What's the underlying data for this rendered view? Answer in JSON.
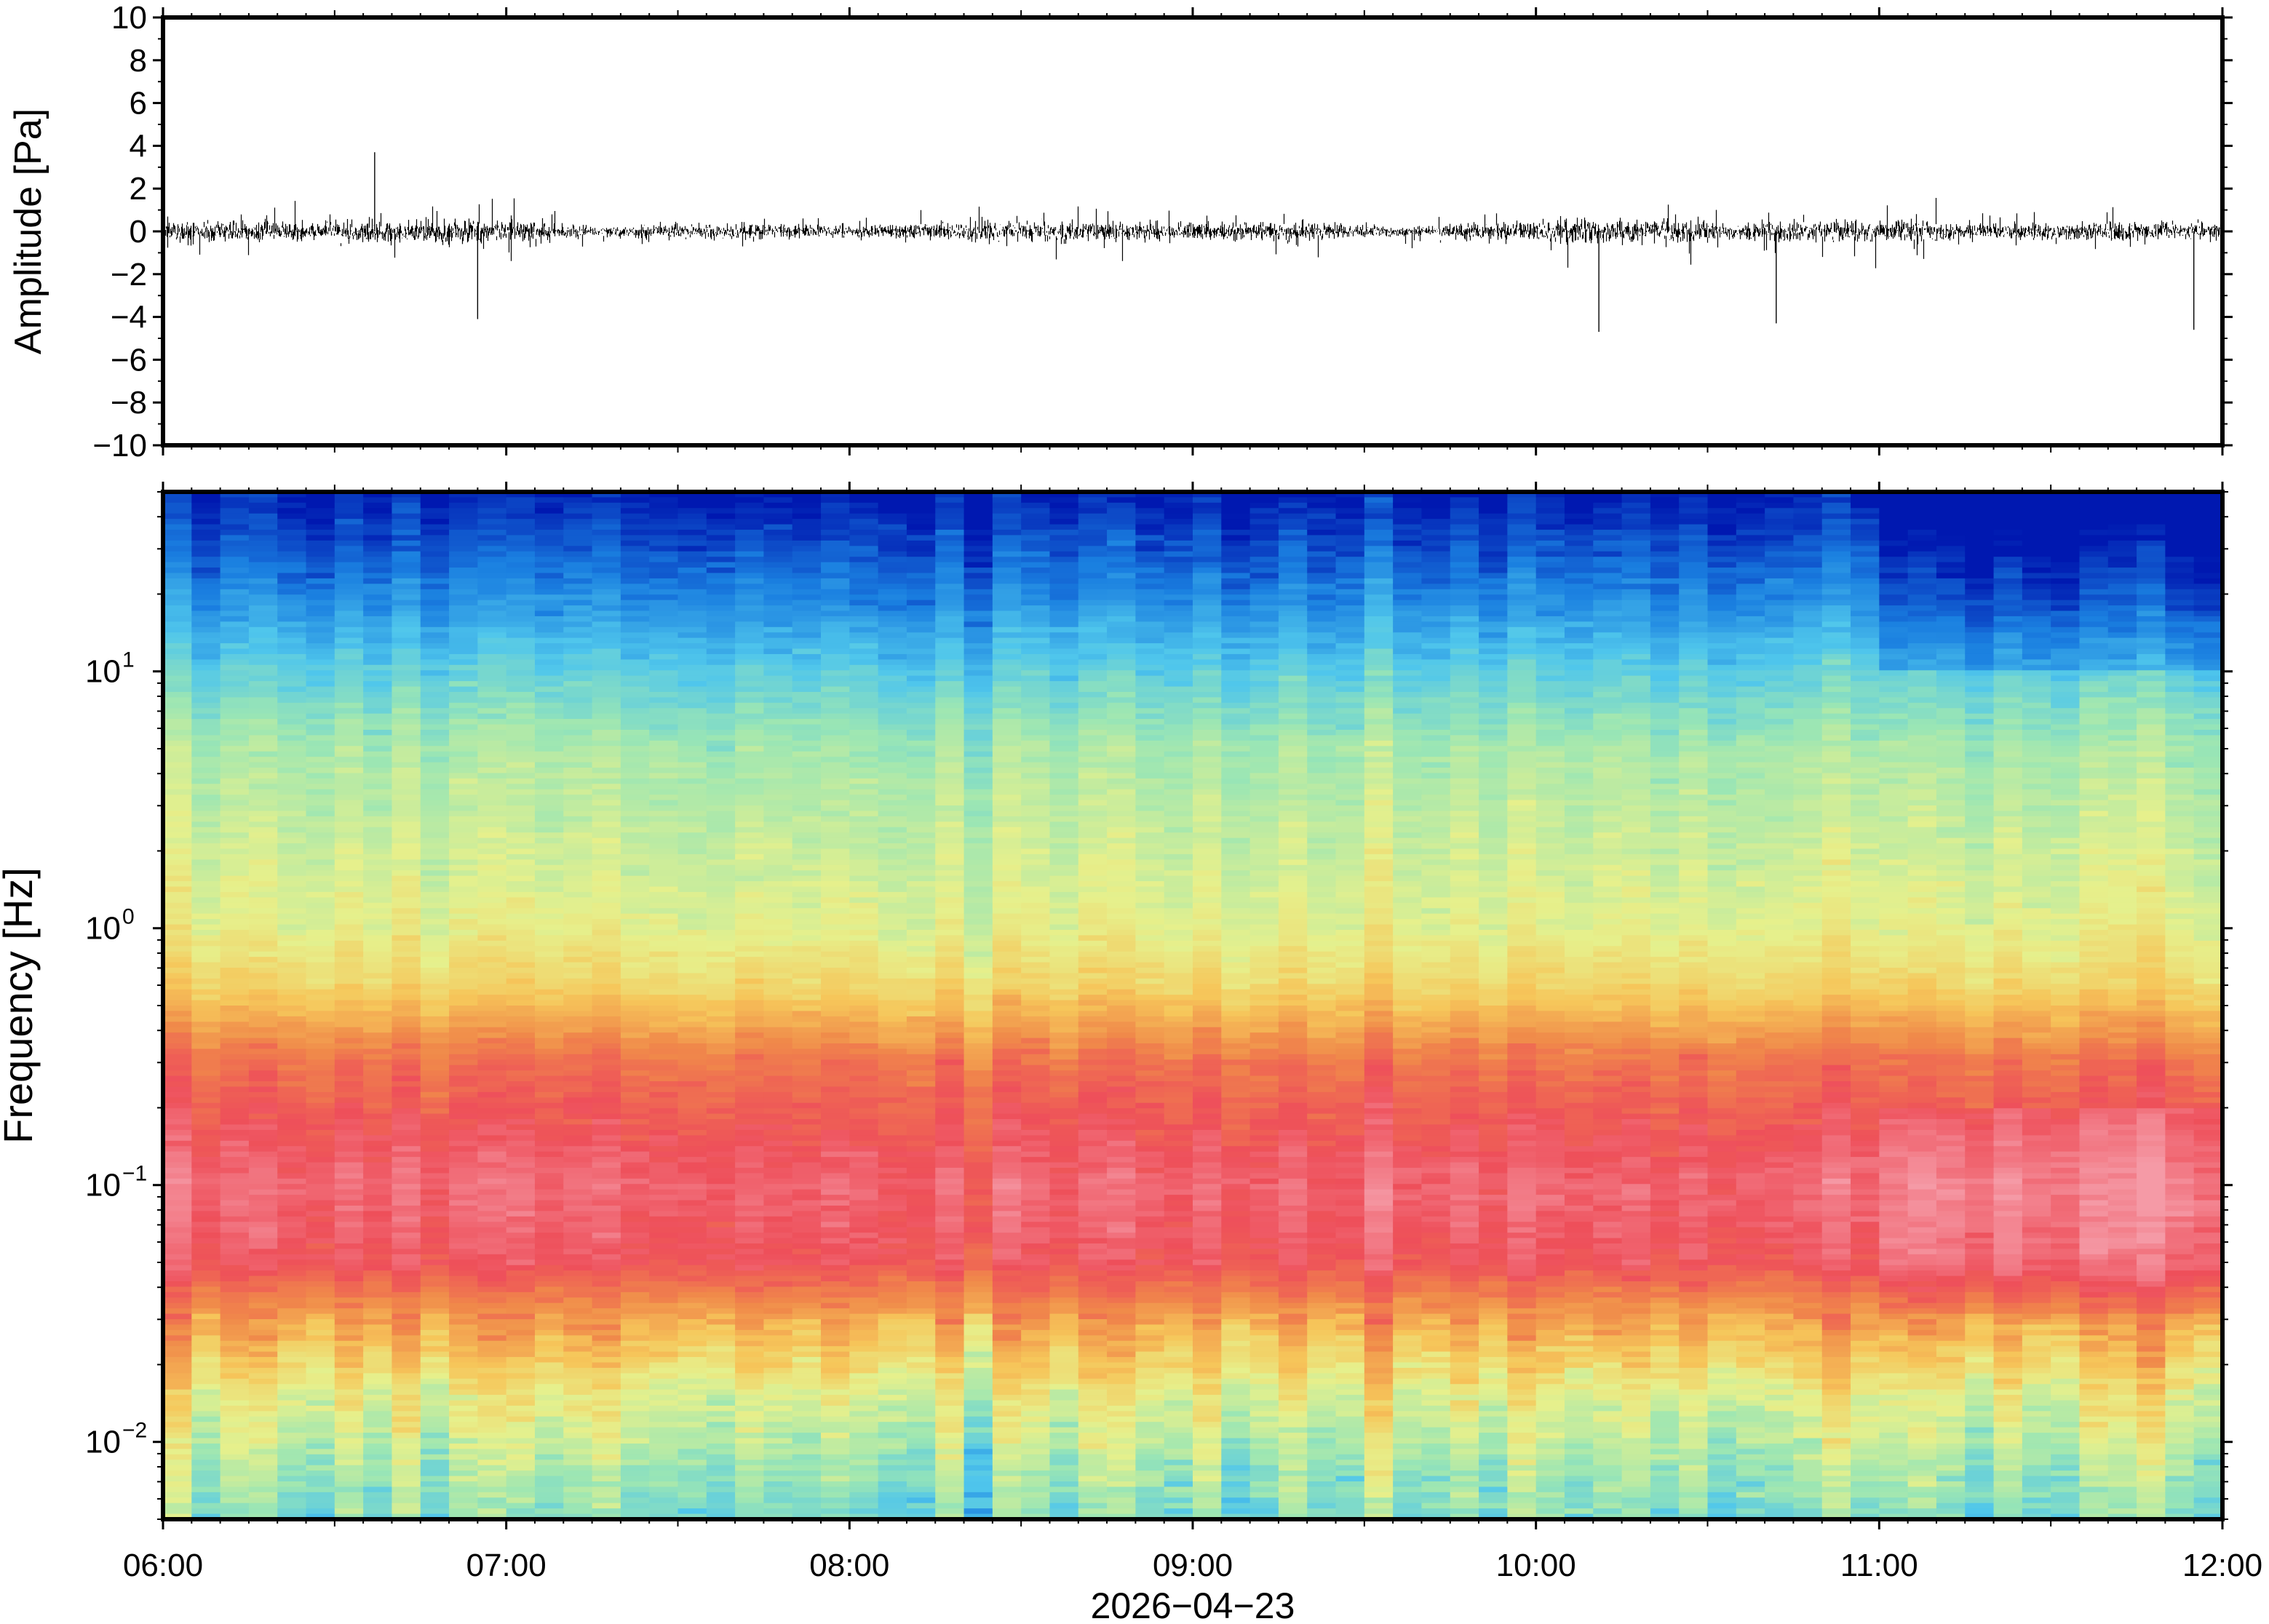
{
  "chart_data": [
    {
      "type": "line",
      "description_kind": "waveform",
      "ylabel": "Amplitude [Pa]",
      "ylim": [
        -10,
        10
      ],
      "yticks": [
        10,
        8,
        6,
        4,
        2,
        0,
        -2,
        -4,
        -6,
        -8,
        -10
      ],
      "ytick_labels": [
        "10",
        "8",
        "6",
        "4",
        "2",
        "0",
        "−2",
        "−4",
        "−6",
        "−8",
        "−10"
      ],
      "xlim": [
        "06:00",
        "12:00"
      ],
      "series_color": "#000000",
      "typical_envelope": [
        -2,
        2
      ],
      "peak_excursions": [
        {
          "time": "06:37",
          "value": 3.7
        },
        {
          "time": "06:55",
          "value": -4.1
        },
        {
          "time": "10:11",
          "value": -4.7
        },
        {
          "time": "10:42",
          "value": -4.3
        },
        {
          "time": "11:55",
          "value": -4.6
        }
      ]
    },
    {
      "type": "heatmap",
      "description_kind": "spectrogram",
      "ylabel": "Frequency [Hz]",
      "yscale": "log",
      "ylim": [
        0.005,
        50
      ],
      "yticks": [
        0.01,
        0.1,
        1,
        10
      ],
      "ytick_labels": [
        {
          "base": "10",
          "exp": "−2"
        },
        {
          "base": "10",
          "exp": "−1"
        },
        {
          "base": "10",
          "exp": "0"
        },
        {
          "base": "10",
          "exp": "1"
        }
      ],
      "xlim": [
        "06:00",
        "12:00"
      ],
      "xticks": [
        "06:00",
        "07:00",
        "08:00",
        "09:00",
        "10:00",
        "11:00",
        "12:00"
      ],
      "xlabel": "2026−04−23",
      "colormap": "rainbow (blue = low power, pink/red = high power)",
      "colormap_stops": [
        "#0018b0",
        "#1a7fe0",
        "#4fc6ec",
        "#9be6b4",
        "#e6f08c",
        "#f6c65a",
        "#f08a4a",
        "#ee4f5a",
        "#f59aa6"
      ],
      "power_profile_by_frequency": [
        {
          "freq": 50,
          "level": 0.0
        },
        {
          "freq": 20,
          "level": 0.14
        },
        {
          "freq": 10,
          "level": 0.28
        },
        {
          "freq": 5,
          "level": 0.4
        },
        {
          "freq": 1,
          "level": 0.5
        },
        {
          "freq": 0.6,
          "level": 0.58
        },
        {
          "freq": 0.3,
          "level": 0.8
        },
        {
          "freq": 0.1,
          "level": 0.92
        },
        {
          "freq": 0.05,
          "level": 0.88
        },
        {
          "freq": 0.03,
          "level": 0.7
        },
        {
          "freq": 0.015,
          "level": 0.5
        },
        {
          "freq": 0.005,
          "level": 0.33
        }
      ]
    }
  ]
}
